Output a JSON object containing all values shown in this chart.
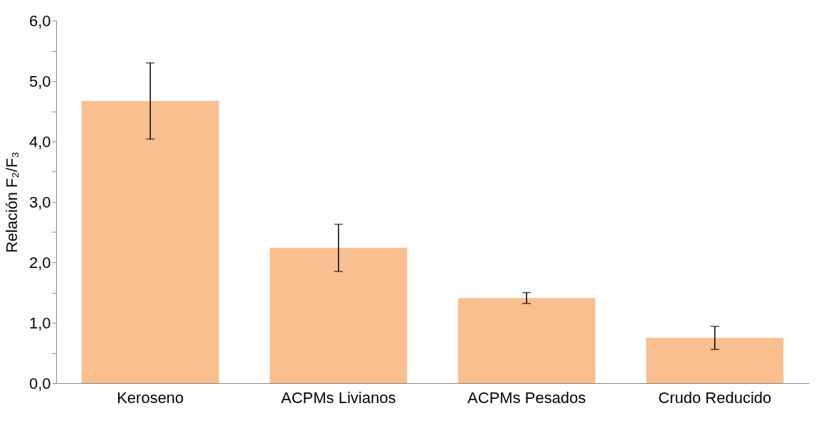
{
  "chart_data": {
    "type": "bar",
    "ylabel": "Relación F₂/F₃",
    "categories": [
      "Keroseno",
      "ACPMs Livianos",
      "ACPMs Pesados",
      "Crudo Reducido"
    ],
    "values": [
      4.67,
      2.24,
      1.41,
      0.75
    ],
    "errors": [
      0.63,
      0.39,
      0.09,
      0.19
    ],
    "color": "#f9bf8f",
    "ylim": [
      0,
      6
    ],
    "yticks": [
      {
        "value": 0,
        "label": "0,0"
      },
      {
        "value": 0.5,
        "label": null
      },
      {
        "value": 1,
        "label": "1,0"
      },
      {
        "value": 1.5,
        "label": null
      },
      {
        "value": 2,
        "label": "2,0"
      },
      {
        "value": 2.5,
        "label": null
      },
      {
        "value": 3,
        "label": "3,0"
      },
      {
        "value": 3.5,
        "label": null
      },
      {
        "value": 4,
        "label": "4,0"
      },
      {
        "value": 4.5,
        "label": null
      },
      {
        "value": 5,
        "label": "5,0"
      },
      {
        "value": 5.5,
        "label": null
      },
      {
        "value": 6,
        "label": "6,0"
      }
    ],
    "grid": false
  }
}
